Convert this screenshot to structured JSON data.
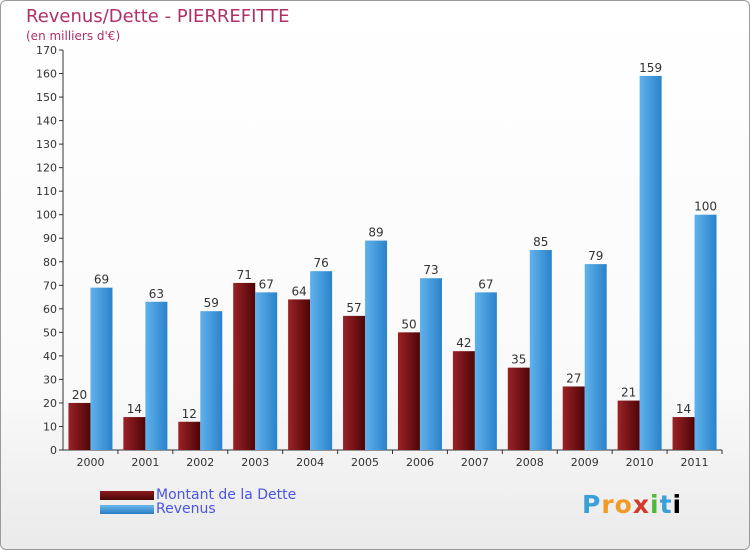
{
  "title": "Revenus/Dette - PIERREFITTE",
  "subtitle": "(en milliers d'€)",
  "logo_text": "Proxiti",
  "colors": {
    "title": "#b0306a",
    "dette": "#6e0d10",
    "revenus": "#3d9ae0",
    "legend_text": "#4a55e0",
    "label_text": "#333333"
  },
  "chart_data": {
    "type": "bar",
    "categories": [
      "2000",
      "2001",
      "2002",
      "2003",
      "2004",
      "2005",
      "2006",
      "2007",
      "2008",
      "2009",
      "2010",
      "2011"
    ],
    "series": [
      {
        "name": "Montant de la Dette",
        "values": [
          20,
          14,
          12,
          71,
          64,
          57,
          50,
          42,
          35,
          27,
          21,
          14
        ]
      },
      {
        "name": "Revenus",
        "values": [
          69,
          63,
          59,
          67,
          76,
          89,
          73,
          67,
          85,
          79,
          159,
          100
        ]
      }
    ],
    "ylim": [
      0,
      170
    ],
    "yticks": [
      0,
      10,
      20,
      30,
      40,
      50,
      60,
      70,
      80,
      90,
      100,
      110,
      120,
      130,
      140,
      150,
      160,
      170
    ],
    "grid": false,
    "legend": "bottom-left"
  }
}
